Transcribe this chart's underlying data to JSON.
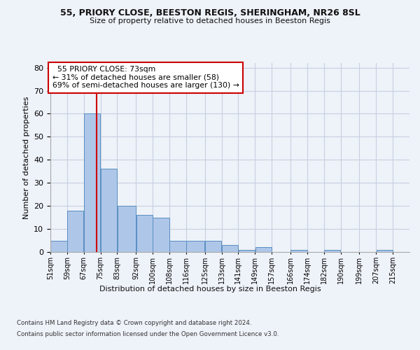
{
  "title1": "55, PRIORY CLOSE, BEESTON REGIS, SHERINGHAM, NR26 8SL",
  "title2": "Size of property relative to detached houses in Beeston Regis",
  "xlabel": "Distribution of detached houses by size in Beeston Regis",
  "ylabel": "Number of detached properties",
  "categories": [
    "51sqm",
    "59sqm",
    "67sqm",
    "75sqm",
    "83sqm",
    "92sqm",
    "100sqm",
    "108sqm",
    "116sqm",
    "125sqm",
    "133sqm",
    "141sqm",
    "149sqm",
    "157sqm",
    "166sqm",
    "174sqm",
    "182sqm",
    "190sqm",
    "199sqm",
    "207sqm",
    "215sqm"
  ],
  "values": [
    5,
    18,
    60,
    36,
    20,
    16,
    15,
    5,
    5,
    5,
    3,
    1,
    2,
    0,
    1,
    0,
    1,
    0,
    0,
    1,
    0
  ],
  "bar_color": "#aec6e8",
  "bar_edge_color": "#5a8fc2",
  "grid_color": "#c8d0e0",
  "bin_edges": [
    51,
    59,
    67,
    75,
    83,
    92,
    100,
    108,
    116,
    125,
    133,
    141,
    149,
    157,
    166,
    174,
    182,
    190,
    199,
    207,
    215,
    223
  ],
  "vline_x": 73,
  "annotation_text1": "55 PRIORY CLOSE: 73sqm",
  "annotation_text2": "← 31% of detached houses are smaller (58)",
  "annotation_text3": "69% of semi-detached houses are larger (130) →",
  "annotation_box_color": "#ffffff",
  "annotation_box_edge_color": "#cc0000",
  "vline_color": "#cc0000",
  "ylim": [
    0,
    82
  ],
  "yticks": [
    0,
    10,
    20,
    30,
    40,
    50,
    60,
    70,
    80
  ],
  "footer1": "Contains HM Land Registry data © Crown copyright and database right 2024.",
  "footer2": "Contains public sector information licensed under the Open Government Licence v3.0.",
  "background_color": "#eef2f9"
}
